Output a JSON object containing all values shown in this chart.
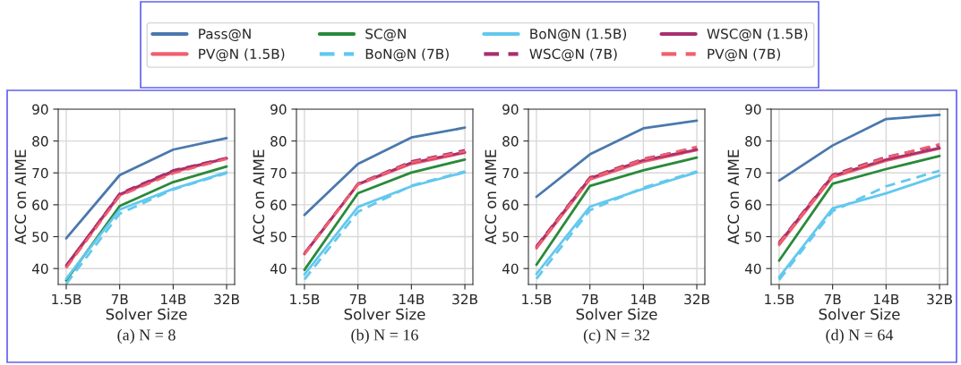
{
  "chart_data": [
    {
      "type": "line",
      "subtitle": "(a) N = 8",
      "xlabel": "Solver Size",
      "ylabel": "ACC on AIME",
      "categories": [
        "1.5B",
        "7B",
        "14B",
        "32B"
      ],
      "ylim": [
        35,
        90
      ],
      "yticks": [
        40,
        50,
        60,
        70,
        80,
        90
      ],
      "grid": true,
      "legend": "top",
      "series": [
        {
          "name": "Pass@N",
          "color": "#4a78ad",
          "line_style": "solid",
          "values": [
            49.5,
            69.3,
            77.3,
            80.9
          ]
        },
        {
          "name": "PV@N (1.5B)",
          "color": "#f0606e",
          "line_style": "solid",
          "values": [
            40.5,
            63.0,
            70.2,
            74.5
          ]
        },
        {
          "name": "SC@N",
          "color": "#2a8a3a",
          "line_style": "solid",
          "values": [
            36.3,
            59.6,
            67.1,
            72.0
          ]
        },
        {
          "name": "BoN@N (7B)",
          "color": "#62c8ee",
          "line_style": "dashed",
          "values": [
            35.2,
            57.2,
            64.8,
            69.9
          ]
        },
        {
          "name": "BoN@N (1.5B)",
          "color": "#62c8ee",
          "line_style": "solid",
          "values": [
            36.8,
            58.5,
            65.0,
            70.2
          ]
        },
        {
          "name": "WSC@N (7B)",
          "color": "#a8306e",
          "line_style": "dashed",
          "values": [
            40.8,
            63.5,
            70.8,
            74.7
          ]
        },
        {
          "name": "WSC@N (1.5B)",
          "color": "#a8306e",
          "line_style": "solid",
          "values": [
            41.0,
            63.3,
            70.6,
            74.6
          ]
        },
        {
          "name": "PV@N (7B)",
          "color": "#f0606e",
          "line_style": "dashed",
          "values": [
            40.2,
            62.8,
            69.9,
            74.4
          ]
        }
      ]
    },
    {
      "type": "line",
      "subtitle": "(b) N = 16",
      "xlabel": "Solver Size",
      "ylabel": "ACC on AIME",
      "categories": [
        "1.5B",
        "7B",
        "14B",
        "32B"
      ],
      "ylim": [
        35,
        90
      ],
      "yticks": [
        40,
        50,
        60,
        70,
        80,
        90
      ],
      "grid": true,
      "series": [
        {
          "color": "#4a78ad",
          "line_style": "solid",
          "values": [
            56.8,
            72.8,
            81.1,
            84.2
          ]
        },
        {
          "color": "#f0606e",
          "line_style": "solid",
          "values": [
            44.5,
            66.3,
            72.8,
            76.3
          ]
        },
        {
          "color": "#2a8a3a",
          "line_style": "solid",
          "values": [
            39.6,
            63.6,
            70.1,
            74.2
          ]
        },
        {
          "color": "#62c8ee",
          "line_style": "dashed",
          "values": [
            36.6,
            57.8,
            66.0,
            70.5
          ]
        },
        {
          "color": "#62c8ee",
          "line_style": "solid",
          "values": [
            38.1,
            59.3,
            65.8,
            70.2
          ]
        },
        {
          "color": "#a8306e",
          "line_style": "dashed",
          "values": [
            44.8,
            66.6,
            73.6,
            77.1
          ]
        },
        {
          "color": "#a8306e",
          "line_style": "solid",
          "values": [
            44.7,
            66.5,
            73.2,
            76.5
          ]
        },
        {
          "color": "#f0606e",
          "line_style": "dashed",
          "values": [
            44.6,
            66.4,
            73.3,
            76.8
          ]
        }
      ]
    },
    {
      "type": "line",
      "subtitle": "(c) N = 32",
      "xlabel": "Solver Size",
      "ylabel": "ACC on AIME",
      "categories": [
        "1.5B",
        "7B",
        "14B",
        "32B"
      ],
      "ylim": [
        35,
        90
      ],
      "yticks": [
        40,
        50,
        60,
        70,
        80,
        90
      ],
      "grid": true,
      "series": [
        {
          "color": "#4a78ad",
          "line_style": "solid",
          "values": [
            62.5,
            75.8,
            84.0,
            86.4
          ]
        },
        {
          "color": "#f0606e",
          "line_style": "solid",
          "values": [
            46.3,
            67.9,
            73.5,
            77.1
          ]
        },
        {
          "color": "#2a8a3a",
          "line_style": "solid",
          "values": [
            41.2,
            65.9,
            70.8,
            74.8
          ]
        },
        {
          "color": "#62c8ee",
          "line_style": "dashed",
          "values": [
            36.8,
            58.3,
            65.4,
            70.5
          ]
        },
        {
          "color": "#62c8ee",
          "line_style": "solid",
          "values": [
            38.3,
            59.4,
            65.0,
            70.2
          ]
        },
        {
          "color": "#a8306e",
          "line_style": "dashed",
          "values": [
            47.0,
            68.6,
            74.4,
            77.9
          ]
        },
        {
          "color": "#a8306e",
          "line_style": "solid",
          "values": [
            46.8,
            68.4,
            74.0,
            77.3
          ]
        },
        {
          "color": "#f0606e",
          "line_style": "dashed",
          "values": [
            46.5,
            68.2,
            74.2,
            78.2
          ]
        }
      ]
    },
    {
      "type": "line",
      "subtitle": "(d) N = 64",
      "xlabel": "Solver Size",
      "ylabel": "ACC on AIME",
      "categories": [
        "1.5B",
        "7B",
        "14B",
        "32B"
      ],
      "ylim": [
        35,
        90
      ],
      "yticks": [
        40,
        50,
        60,
        70,
        80,
        90
      ],
      "grid": true,
      "series": [
        {
          "color": "#4a78ad",
          "line_style": "solid",
          "values": [
            67.6,
            78.6,
            86.9,
            88.2
          ]
        },
        {
          "color": "#f0606e",
          "line_style": "solid",
          "values": [
            47.4,
            68.6,
            73.8,
            77.6
          ]
        },
        {
          "color": "#2a8a3a",
          "line_style": "solid",
          "values": [
            42.5,
            66.6,
            71.2,
            75.3
          ]
        },
        {
          "color": "#62c8ee",
          "line_style": "dashed",
          "values": [
            36.4,
            58.0,
            65.8,
            70.7
          ]
        },
        {
          "color": "#62c8ee",
          "line_style": "solid",
          "values": [
            37.3,
            58.9,
            63.6,
            69.2
          ]
        },
        {
          "color": "#a8306e",
          "line_style": "dashed",
          "values": [
            48.2,
            69.4,
            75.0,
            78.6
          ]
        },
        {
          "color": "#a8306e",
          "line_style": "solid",
          "values": [
            48.0,
            69.1,
            74.2,
            77.8
          ]
        },
        {
          "color": "#f0606e",
          "line_style": "dashed",
          "values": [
            47.8,
            69.0,
            74.8,
            79.0
          ]
        }
      ]
    }
  ]
}
